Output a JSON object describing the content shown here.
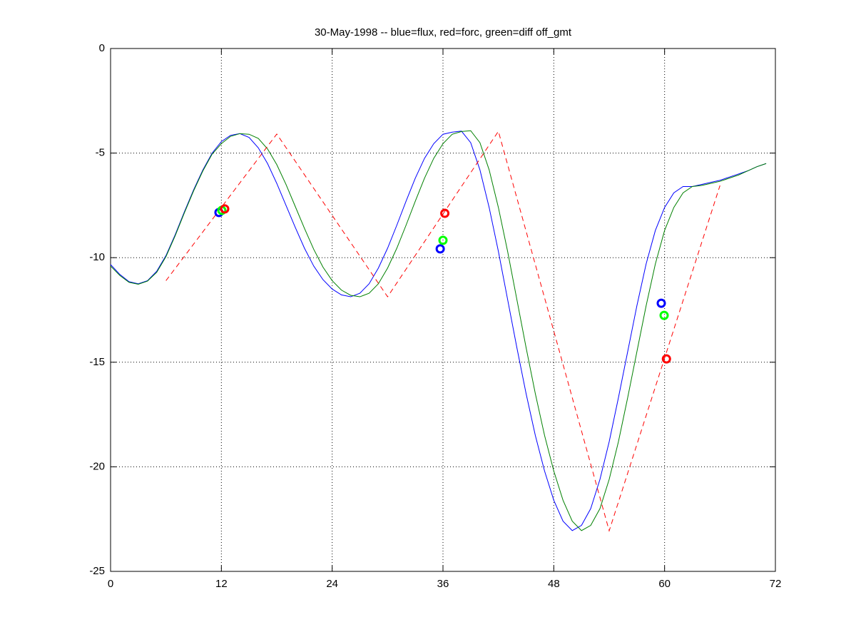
{
  "chart_data": {
    "type": "line",
    "title": "30-May-1998 -- blue=flux, red=forc, green=diff off_gmt",
    "xlim": [
      0,
      72
    ],
    "xticks": [
      0,
      12,
      24,
      36,
      48,
      60,
      72
    ],
    "ylim": [
      -25,
      0
    ],
    "yticks": [
      -25,
      -20,
      -15,
      -10,
      -5,
      0
    ],
    "grid": true,
    "series": [
      {
        "color": "#0000ff",
        "linestyle": "solid",
        "x": [
          0,
          1,
          2,
          3,
          4,
          5,
          6,
          7,
          8,
          9,
          10,
          11,
          12,
          13,
          14,
          15,
          16,
          17,
          18,
          19,
          20,
          21,
          22,
          23,
          24,
          25,
          26,
          27,
          28,
          29,
          30,
          31,
          32,
          33,
          34,
          35,
          36,
          37,
          38,
          39,
          40,
          41,
          42,
          43,
          44,
          45,
          46,
          47,
          48,
          49,
          50,
          51,
          52,
          53,
          54,
          55,
          56,
          57,
          58,
          59,
          60,
          61,
          62,
          63,
          64,
          65,
          66,
          67,
          68,
          69,
          70,
          71
        ],
        "values": [
          -10.33,
          -10.8,
          -11.15,
          -11.25,
          -11.1,
          -10.65,
          -9.9,
          -8.9,
          -7.8,
          -6.75,
          -5.8,
          -5.0,
          -4.45,
          -4.15,
          -4.07,
          -4.25,
          -4.75,
          -5.5,
          -6.45,
          -7.5,
          -8.55,
          -9.55,
          -10.4,
          -11.05,
          -11.5,
          -11.78,
          -11.87,
          -11.7,
          -11.25,
          -10.5,
          -9.55,
          -8.45,
          -7.3,
          -6.2,
          -5.25,
          -4.55,
          -4.1,
          -4.0,
          -3.95,
          -4.5,
          -5.8,
          -7.6,
          -9.7,
          -12.0,
          -14.3,
          -16.5,
          -18.5,
          -20.2,
          -21.6,
          -22.6,
          -23.05,
          -22.8,
          -22.0,
          -20.6,
          -18.8,
          -16.7,
          -14.5,
          -12.3,
          -10.3,
          -8.7,
          -7.6,
          -6.9,
          -6.6,
          -6.6,
          -6.5,
          -6.4,
          -6.3,
          -6.15,
          -6.0,
          -5.85,
          -5.65,
          -5.5
        ]
      },
      {
        "color": "#008000",
        "linestyle": "solid",
        "x": [
          0,
          1,
          2,
          3,
          4,
          5,
          6,
          7,
          8,
          9,
          10,
          11,
          12,
          13,
          14,
          15,
          16,
          17,
          18,
          19,
          20,
          21,
          22,
          23,
          24,
          25,
          26,
          27,
          28,
          29,
          30,
          31,
          32,
          33,
          34,
          35,
          36,
          37,
          38,
          39,
          40,
          41,
          42,
          43,
          44,
          45,
          46,
          47,
          48,
          49,
          50,
          51,
          52,
          53,
          54,
          55,
          56,
          57,
          58,
          59,
          60,
          61,
          62,
          63,
          64,
          65,
          66,
          67,
          68,
          69,
          70,
          71
        ],
        "values": [
          -10.4,
          -10.85,
          -11.18,
          -11.27,
          -11.12,
          -10.7,
          -9.95,
          -8.95,
          -7.85,
          -6.8,
          -5.85,
          -5.05,
          -4.55,
          -4.2,
          -4.07,
          -4.1,
          -4.3,
          -4.8,
          -5.55,
          -6.5,
          -7.55,
          -8.6,
          -9.6,
          -10.45,
          -11.1,
          -11.55,
          -11.8,
          -11.87,
          -11.7,
          -11.25,
          -10.5,
          -9.55,
          -8.45,
          -7.3,
          -6.2,
          -5.25,
          -4.55,
          -4.1,
          -3.97,
          -3.93,
          -4.5,
          -5.8,
          -7.6,
          -9.7,
          -12.0,
          -14.3,
          -16.5,
          -18.5,
          -20.2,
          -21.6,
          -22.6,
          -23.05,
          -22.8,
          -22.0,
          -20.6,
          -18.8,
          -16.7,
          -14.5,
          -12.3,
          -10.3,
          -8.7,
          -7.6,
          -6.9,
          -6.6,
          -6.55,
          -6.45,
          -6.35,
          -6.2,
          -6.05,
          -5.85,
          -5.65,
          -5.5
        ]
      },
      {
        "color": "#ff0000",
        "linestyle": "dashed",
        "x": [
          6,
          18,
          30,
          42,
          54,
          66
        ],
        "values": [
          -11.1,
          -4.09,
          -11.87,
          -3.96,
          -23.06,
          -6.55
        ]
      },
      {
        "color": "#0000ff",
        "marker": "circle",
        "x": [
          11.74,
          35.7,
          59.64
        ],
        "values": [
          -7.84,
          -9.58,
          -12.18
        ]
      },
      {
        "color": "#00ff00",
        "marker": "circle",
        "x": [
          12.05,
          36.0,
          59.95
        ],
        "values": [
          -7.74,
          -9.17,
          -12.76
        ]
      },
      {
        "color": "#ff0000",
        "marker": "circle",
        "x": [
          12.36,
          36.2,
          60.2
        ],
        "values": [
          -7.67,
          -7.88,
          -14.84
        ]
      }
    ]
  }
}
